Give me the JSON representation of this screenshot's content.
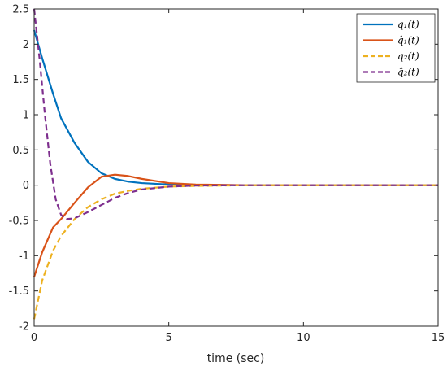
{
  "chart_data": {
    "type": "line",
    "title": "",
    "xlabel": "time (sec)",
    "ylabel": "",
    "xlim": [
      0,
      15
    ],
    "ylim": [
      -2,
      2.5
    ],
    "xticks": [
      0,
      5,
      10,
      15
    ],
    "yticks": [
      -2,
      -1.5,
      -1,
      -0.5,
      0,
      0.5,
      1,
      1.5,
      2,
      2.5
    ],
    "xtick_labels": [
      "0",
      "5",
      "10",
      "15"
    ],
    "ytick_labels": [
      "-2",
      "-1.5",
      "-1",
      "-0.5",
      "0",
      "0.5",
      "1",
      "1.5",
      "2",
      "2.5"
    ],
    "grid": false,
    "legend_position": "top-right",
    "series": [
      {
        "name": "q₁(t)",
        "color": "#0072BD",
        "dash": "solid",
        "points": [
          [
            0,
            2.2
          ],
          [
            0.3,
            1.8
          ],
          [
            0.7,
            1.3
          ],
          [
            1.0,
            0.95
          ],
          [
            1.5,
            0.6
          ],
          [
            2.0,
            0.33
          ],
          [
            2.5,
            0.17
          ],
          [
            3.0,
            0.09
          ],
          [
            3.5,
            0.05
          ],
          [
            4.0,
            0.03
          ],
          [
            5.0,
            0.01
          ],
          [
            6.0,
            0.005
          ],
          [
            8.0,
            0.0
          ],
          [
            15.0,
            0.0
          ]
        ]
      },
      {
        "name": "q̂₁(t)",
        "color": "#D95319",
        "dash": "solid",
        "points": [
          [
            0,
            -1.3
          ],
          [
            0.3,
            -0.95
          ],
          [
            0.7,
            -0.6
          ],
          [
            1.0,
            -0.48
          ],
          [
            1.5,
            -0.25
          ],
          [
            2.0,
            -0.03
          ],
          [
            2.5,
            0.12
          ],
          [
            3.0,
            0.15
          ],
          [
            3.5,
            0.13
          ],
          [
            4.0,
            0.09
          ],
          [
            5.0,
            0.03
          ],
          [
            6.0,
            0.01
          ],
          [
            8.0,
            0.0
          ],
          [
            15.0,
            0.0
          ]
        ]
      },
      {
        "name": "q₂(t)",
        "color": "#EDB120",
        "dash": "dashed",
        "points": [
          [
            0,
            -1.9
          ],
          [
            0.3,
            -1.35
          ],
          [
            0.7,
            -0.93
          ],
          [
            1.0,
            -0.72
          ],
          [
            1.5,
            -0.48
          ],
          [
            2.0,
            -0.31
          ],
          [
            2.5,
            -0.2
          ],
          [
            3.0,
            -0.12
          ],
          [
            3.5,
            -0.08
          ],
          [
            4.0,
            -0.05
          ],
          [
            5.0,
            -0.02
          ],
          [
            6.0,
            -0.01
          ],
          [
            8.0,
            0.0
          ],
          [
            15.0,
            0.0
          ]
        ]
      },
      {
        "name": "q̂₂(t)",
        "color": "#7E2F8E",
        "dash": "dashed",
        "points": [
          [
            0,
            2.5
          ],
          [
            0.2,
            1.8
          ],
          [
            0.4,
            1.0
          ],
          [
            0.6,
            0.3
          ],
          [
            0.8,
            -0.2
          ],
          [
            1.0,
            -0.42
          ],
          [
            1.2,
            -0.48
          ],
          [
            1.5,
            -0.47
          ],
          [
            2.0,
            -0.38
          ],
          [
            2.5,
            -0.28
          ],
          [
            3.0,
            -0.18
          ],
          [
            3.5,
            -0.11
          ],
          [
            4.0,
            -0.06
          ],
          [
            5.0,
            -0.02
          ],
          [
            6.0,
            -0.005
          ],
          [
            8.0,
            0.0
          ],
          [
            15.0,
            0.0
          ]
        ]
      }
    ]
  }
}
